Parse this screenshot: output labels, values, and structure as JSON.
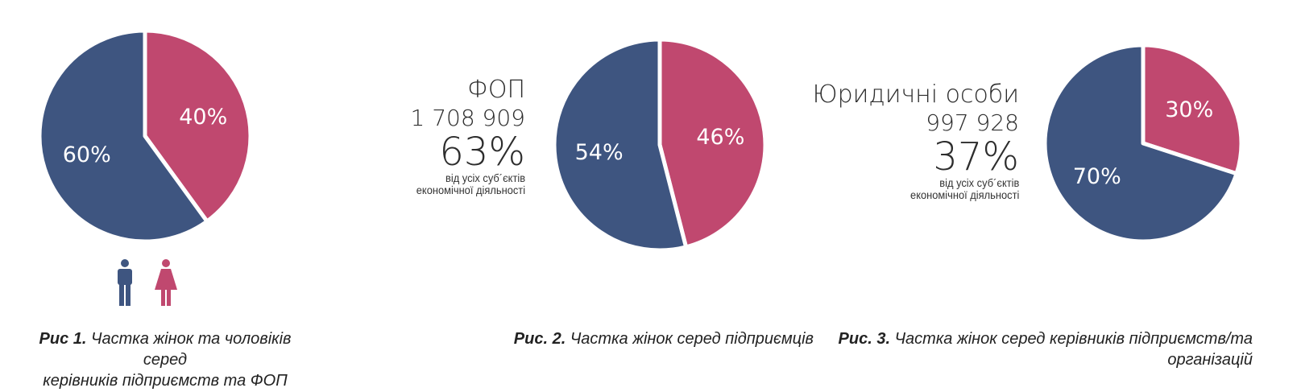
{
  "colors": {
    "men": "#3e5580",
    "women": "#c0486f"
  },
  "figure1": {
    "caption_prefix": "Рис 1.",
    "caption_line1": "Частка жінок та чоловіків серед",
    "caption_line2": "керівників підприємств та ФОП",
    "icons": [
      "male-icon",
      "female-icon"
    ]
  },
  "figure2": {
    "title": "ФОП",
    "count": "1 708 909",
    "share": "63%",
    "note_line1": "від усіх суб´єктів",
    "note_line2": "економічної діяльності",
    "caption_prefix": "Рис. 2.",
    "caption_text": "Частка жінок серед підприємців"
  },
  "figure3": {
    "title": "Юридичні особи",
    "count": "997 928",
    "share": "37%",
    "note_line1": "від усіх суб´єктів",
    "note_line2": "економічної діяльності",
    "caption_prefix": "Рис. 3.",
    "caption_line1": "Частка жінок серед керівників підприємств/та",
    "caption_line2": "організацій"
  },
  "chart_data": [
    {
      "type": "pie",
      "title": "",
      "slices": [
        {
          "category": "men",
          "value": 60,
          "label": "60%"
        },
        {
          "category": "women",
          "value": 40,
          "label": "40%"
        }
      ]
    },
    {
      "type": "pie",
      "title": "",
      "slices": [
        {
          "category": "men",
          "value": 54,
          "label": "54%"
        },
        {
          "category": "women",
          "value": 46,
          "label": "46%"
        }
      ]
    },
    {
      "type": "pie",
      "title": "",
      "slices": [
        {
          "category": "men",
          "value": 70,
          "label": "70%"
        },
        {
          "category": "women",
          "value": 30,
          "label": "30%"
        }
      ]
    }
  ]
}
